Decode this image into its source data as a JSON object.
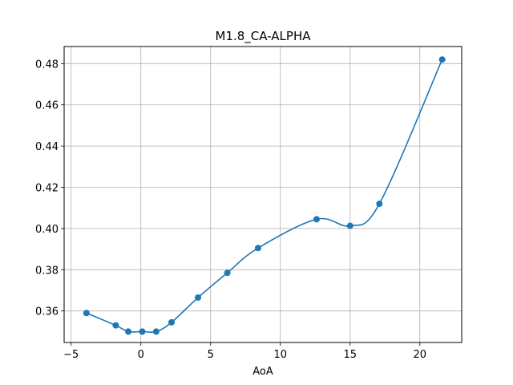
{
  "chart_data": {
    "type": "line",
    "title": "M1.8_CA-ALPHA",
    "xlabel": "AoA",
    "ylabel": "",
    "xlim": [
      -5.5,
      23.0
    ],
    "ylim": [
      0.3447,
      0.4883
    ],
    "x_ticks": [
      -5,
      0,
      5,
      10,
      15,
      20
    ],
    "x_tick_labels": [
      "−5",
      "0",
      "5",
      "10",
      "15",
      "20"
    ],
    "y_ticks": [
      0.36,
      0.38,
      0.4,
      0.42,
      0.44,
      0.46,
      0.48
    ],
    "y_tick_labels": [
      "0.36",
      "0.38",
      "0.40",
      "0.42",
      "0.44",
      "0.46",
      "0.48"
    ],
    "grid": true,
    "legend": "none",
    "series": [
      {
        "color": "#1f77b4",
        "markers": true,
        "smooth": true,
        "points": [
          {
            "x": -3.9,
            "y": 0.359
          },
          {
            "x": -1.8,
            "y": 0.353
          },
          {
            "x": -0.9,
            "y": 0.35
          },
          {
            "x": 0.1,
            "y": 0.35
          },
          {
            "x": 1.1,
            "y": 0.35
          },
          {
            "x": 2.2,
            "y": 0.3545
          },
          {
            "x": 4.1,
            "y": 0.3665
          },
          {
            "x": 6.2,
            "y": 0.3785
          },
          {
            "x": 8.4,
            "y": 0.3905
          },
          {
            "x": 12.6,
            "y": 0.4045
          },
          {
            "x": 15.0,
            "y": 0.4013
          },
          {
            "x": 17.1,
            "y": 0.412
          },
          {
            "x": 21.6,
            "y": 0.482
          }
        ]
      }
    ]
  }
}
